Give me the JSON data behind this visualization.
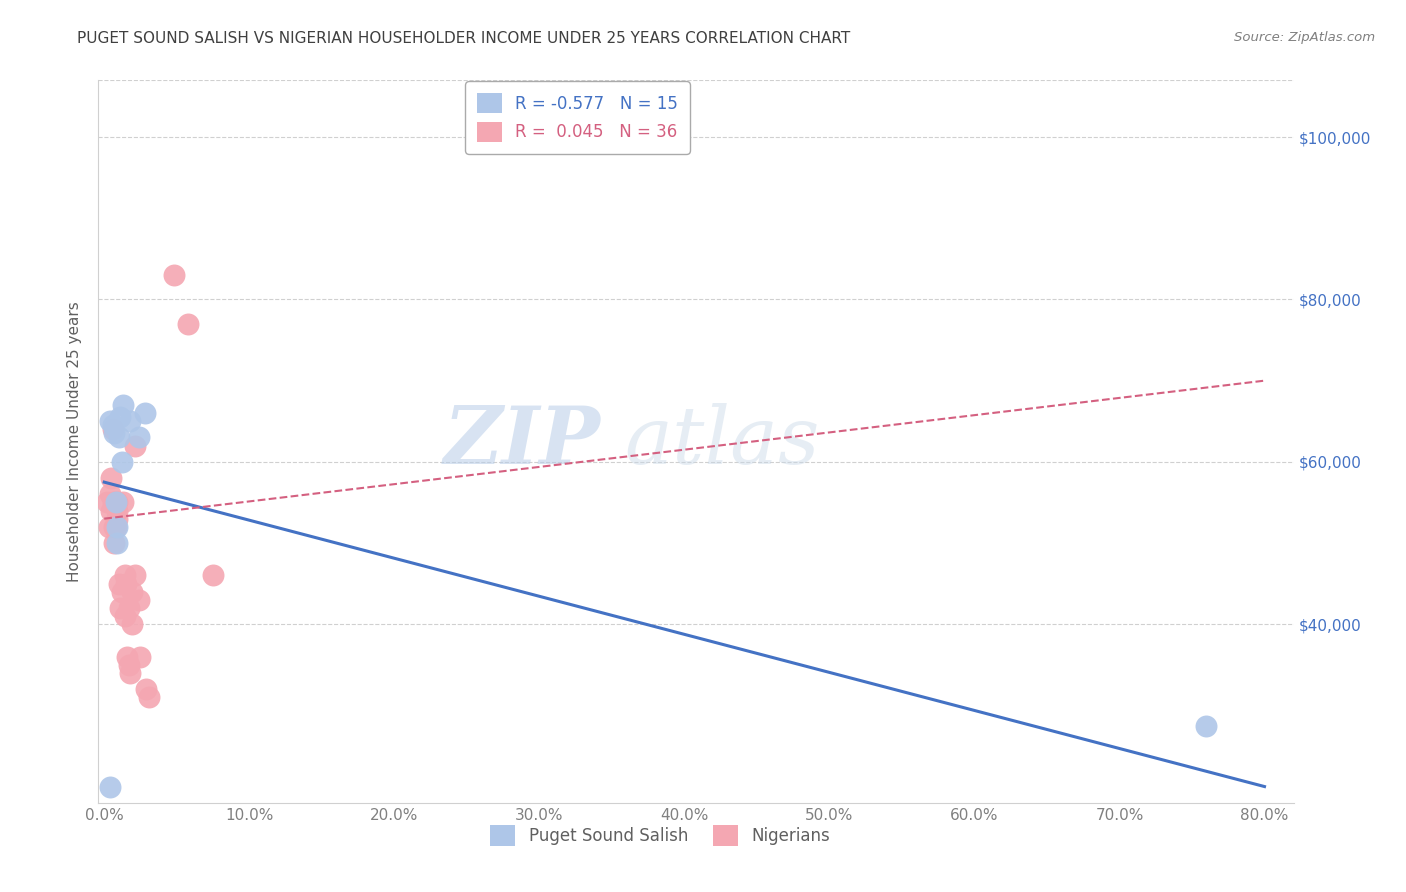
{
  "title": "PUGET SOUND SALISH VS NIGERIAN HOUSEHOLDER INCOME UNDER 25 YEARS CORRELATION CHART",
  "source": "Source: ZipAtlas.com",
  "ylabel": "Householder Income Under 25 years",
  "xlabel_ticks": [
    "0.0%",
    "10.0%",
    "20.0%",
    "30.0%",
    "40.0%",
    "50.0%",
    "60.0%",
    "70.0%",
    "80.0%"
  ],
  "xlabel_vals": [
    0.0,
    0.1,
    0.2,
    0.3,
    0.4,
    0.5,
    0.6,
    0.7,
    0.8
  ],
  "ylabel_ticks_labels": [
    "$40,000",
    "$60,000",
    "$80,000",
    "$100,000"
  ],
  "ylabel_ticks_vals": [
    40000,
    60000,
    80000,
    100000
  ],
  "ylim": [
    18000,
    107000
  ],
  "xlim": [
    -0.004,
    0.82
  ],
  "blue_R": -0.577,
  "blue_N": 15,
  "pink_R": 0.045,
  "pink_N": 36,
  "blue_label": "Puget Sound Salish",
  "pink_label": "Nigerians",
  "blue_color": "#aec6e8",
  "pink_color": "#f4a7b2",
  "blue_line_color": "#4472c4",
  "pink_line_color": "#d46080",
  "title_color": "#404040",
  "source_color": "#808080",
  "axis_label_color": "#606060",
  "right_axis_color": "#4472c4",
  "watermark_zip": "ZIP",
  "watermark_atlas": "atlas",
  "blue_line_x0": 0.0,
  "blue_line_y0": 57500,
  "blue_line_x1": 0.8,
  "blue_line_y1": 20000,
  "pink_line_x0": 0.0,
  "pink_line_y0": 53000,
  "pink_line_x1": 0.8,
  "pink_line_y1": 70000,
  "blue_x": [
    0.004,
    0.006,
    0.007,
    0.008,
    0.009,
    0.009,
    0.01,
    0.011,
    0.012,
    0.013,
    0.018,
    0.024,
    0.028,
    0.76,
    0.004
  ],
  "blue_y": [
    65000,
    64500,
    63500,
    55000,
    50000,
    52000,
    63000,
    65500,
    60000,
    67000,
    65000,
    63000,
    66000,
    27500,
    20000
  ],
  "pink_x": [
    0.002,
    0.003,
    0.004,
    0.005,
    0.005,
    0.006,
    0.006,
    0.007,
    0.007,
    0.008,
    0.008,
    0.009,
    0.009,
    0.009,
    0.01,
    0.011,
    0.012,
    0.013,
    0.014,
    0.014,
    0.015,
    0.016,
    0.017,
    0.017,
    0.018,
    0.019,
    0.019,
    0.021,
    0.021,
    0.024,
    0.025,
    0.029,
    0.031,
    0.048,
    0.058,
    0.075
  ],
  "pink_y": [
    55000,
    52000,
    56000,
    58000,
    54000,
    64000,
    55000,
    52000,
    50000,
    55000,
    52000,
    55000,
    54000,
    53000,
    45000,
    42000,
    44000,
    55000,
    46000,
    41000,
    45000,
    36000,
    35000,
    42000,
    34000,
    44000,
    40000,
    46000,
    62000,
    43000,
    36000,
    32000,
    31000,
    83000,
    77000,
    46000
  ]
}
